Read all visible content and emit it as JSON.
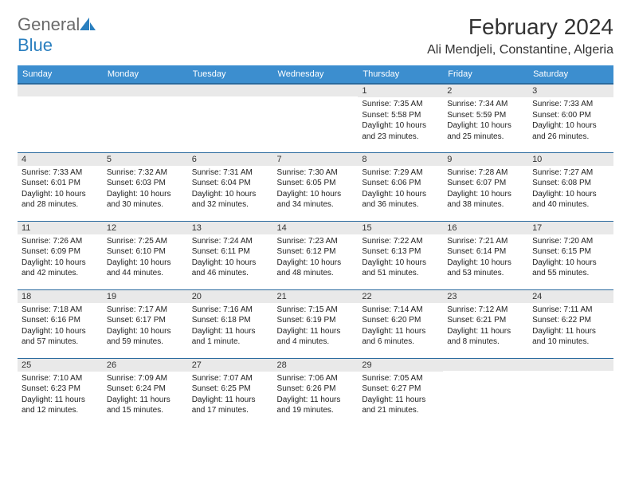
{
  "brand": {
    "text1": "General",
    "text2": "Blue",
    "color1": "#6a6a6a",
    "color2": "#2a7fbf"
  },
  "title": "February 2024",
  "location": "Ali Mendjeli, Constantine, Algeria",
  "colors": {
    "header_bg": "#3c8ecf",
    "header_fg": "#ffffff",
    "day_header_bg": "#e9e9e9",
    "border": "#2a6a9e",
    "text": "#333333"
  },
  "weekdays": [
    "Sunday",
    "Monday",
    "Tuesday",
    "Wednesday",
    "Thursday",
    "Friday",
    "Saturday"
  ],
  "weeks": [
    [
      {
        "day": "",
        "lines": []
      },
      {
        "day": "",
        "lines": []
      },
      {
        "day": "",
        "lines": []
      },
      {
        "day": "",
        "lines": []
      },
      {
        "day": "1",
        "lines": [
          "Sunrise: 7:35 AM",
          "Sunset: 5:58 PM",
          "Daylight: 10 hours and 23 minutes."
        ]
      },
      {
        "day": "2",
        "lines": [
          "Sunrise: 7:34 AM",
          "Sunset: 5:59 PM",
          "Daylight: 10 hours and 25 minutes."
        ]
      },
      {
        "day": "3",
        "lines": [
          "Sunrise: 7:33 AM",
          "Sunset: 6:00 PM",
          "Daylight: 10 hours and 26 minutes."
        ]
      }
    ],
    [
      {
        "day": "4",
        "lines": [
          "Sunrise: 7:33 AM",
          "Sunset: 6:01 PM",
          "Daylight: 10 hours and 28 minutes."
        ]
      },
      {
        "day": "5",
        "lines": [
          "Sunrise: 7:32 AM",
          "Sunset: 6:03 PM",
          "Daylight: 10 hours and 30 minutes."
        ]
      },
      {
        "day": "6",
        "lines": [
          "Sunrise: 7:31 AM",
          "Sunset: 6:04 PM",
          "Daylight: 10 hours and 32 minutes."
        ]
      },
      {
        "day": "7",
        "lines": [
          "Sunrise: 7:30 AM",
          "Sunset: 6:05 PM",
          "Daylight: 10 hours and 34 minutes."
        ]
      },
      {
        "day": "8",
        "lines": [
          "Sunrise: 7:29 AM",
          "Sunset: 6:06 PM",
          "Daylight: 10 hours and 36 minutes."
        ]
      },
      {
        "day": "9",
        "lines": [
          "Sunrise: 7:28 AM",
          "Sunset: 6:07 PM",
          "Daylight: 10 hours and 38 minutes."
        ]
      },
      {
        "day": "10",
        "lines": [
          "Sunrise: 7:27 AM",
          "Sunset: 6:08 PM",
          "Daylight: 10 hours and 40 minutes."
        ]
      }
    ],
    [
      {
        "day": "11",
        "lines": [
          "Sunrise: 7:26 AM",
          "Sunset: 6:09 PM",
          "Daylight: 10 hours and 42 minutes."
        ]
      },
      {
        "day": "12",
        "lines": [
          "Sunrise: 7:25 AM",
          "Sunset: 6:10 PM",
          "Daylight: 10 hours and 44 minutes."
        ]
      },
      {
        "day": "13",
        "lines": [
          "Sunrise: 7:24 AM",
          "Sunset: 6:11 PM",
          "Daylight: 10 hours and 46 minutes."
        ]
      },
      {
        "day": "14",
        "lines": [
          "Sunrise: 7:23 AM",
          "Sunset: 6:12 PM",
          "Daylight: 10 hours and 48 minutes."
        ]
      },
      {
        "day": "15",
        "lines": [
          "Sunrise: 7:22 AM",
          "Sunset: 6:13 PM",
          "Daylight: 10 hours and 51 minutes."
        ]
      },
      {
        "day": "16",
        "lines": [
          "Sunrise: 7:21 AM",
          "Sunset: 6:14 PM",
          "Daylight: 10 hours and 53 minutes."
        ]
      },
      {
        "day": "17",
        "lines": [
          "Sunrise: 7:20 AM",
          "Sunset: 6:15 PM",
          "Daylight: 10 hours and 55 minutes."
        ]
      }
    ],
    [
      {
        "day": "18",
        "lines": [
          "Sunrise: 7:18 AM",
          "Sunset: 6:16 PM",
          "Daylight: 10 hours and 57 minutes."
        ]
      },
      {
        "day": "19",
        "lines": [
          "Sunrise: 7:17 AM",
          "Sunset: 6:17 PM",
          "Daylight: 10 hours and 59 minutes."
        ]
      },
      {
        "day": "20",
        "lines": [
          "Sunrise: 7:16 AM",
          "Sunset: 6:18 PM",
          "Daylight: 11 hours and 1 minute."
        ]
      },
      {
        "day": "21",
        "lines": [
          "Sunrise: 7:15 AM",
          "Sunset: 6:19 PM",
          "Daylight: 11 hours and 4 minutes."
        ]
      },
      {
        "day": "22",
        "lines": [
          "Sunrise: 7:14 AM",
          "Sunset: 6:20 PM",
          "Daylight: 11 hours and 6 minutes."
        ]
      },
      {
        "day": "23",
        "lines": [
          "Sunrise: 7:12 AM",
          "Sunset: 6:21 PM",
          "Daylight: 11 hours and 8 minutes."
        ]
      },
      {
        "day": "24",
        "lines": [
          "Sunrise: 7:11 AM",
          "Sunset: 6:22 PM",
          "Daylight: 11 hours and 10 minutes."
        ]
      }
    ],
    [
      {
        "day": "25",
        "lines": [
          "Sunrise: 7:10 AM",
          "Sunset: 6:23 PM",
          "Daylight: 11 hours and 12 minutes."
        ]
      },
      {
        "day": "26",
        "lines": [
          "Sunrise: 7:09 AM",
          "Sunset: 6:24 PM",
          "Daylight: 11 hours and 15 minutes."
        ]
      },
      {
        "day": "27",
        "lines": [
          "Sunrise: 7:07 AM",
          "Sunset: 6:25 PM",
          "Daylight: 11 hours and 17 minutes."
        ]
      },
      {
        "day": "28",
        "lines": [
          "Sunrise: 7:06 AM",
          "Sunset: 6:26 PM",
          "Daylight: 11 hours and 19 minutes."
        ]
      },
      {
        "day": "29",
        "lines": [
          "Sunrise: 7:05 AM",
          "Sunset: 6:27 PM",
          "Daylight: 11 hours and 21 minutes."
        ]
      },
      {
        "day": "",
        "lines": []
      },
      {
        "day": "",
        "lines": []
      }
    ]
  ]
}
